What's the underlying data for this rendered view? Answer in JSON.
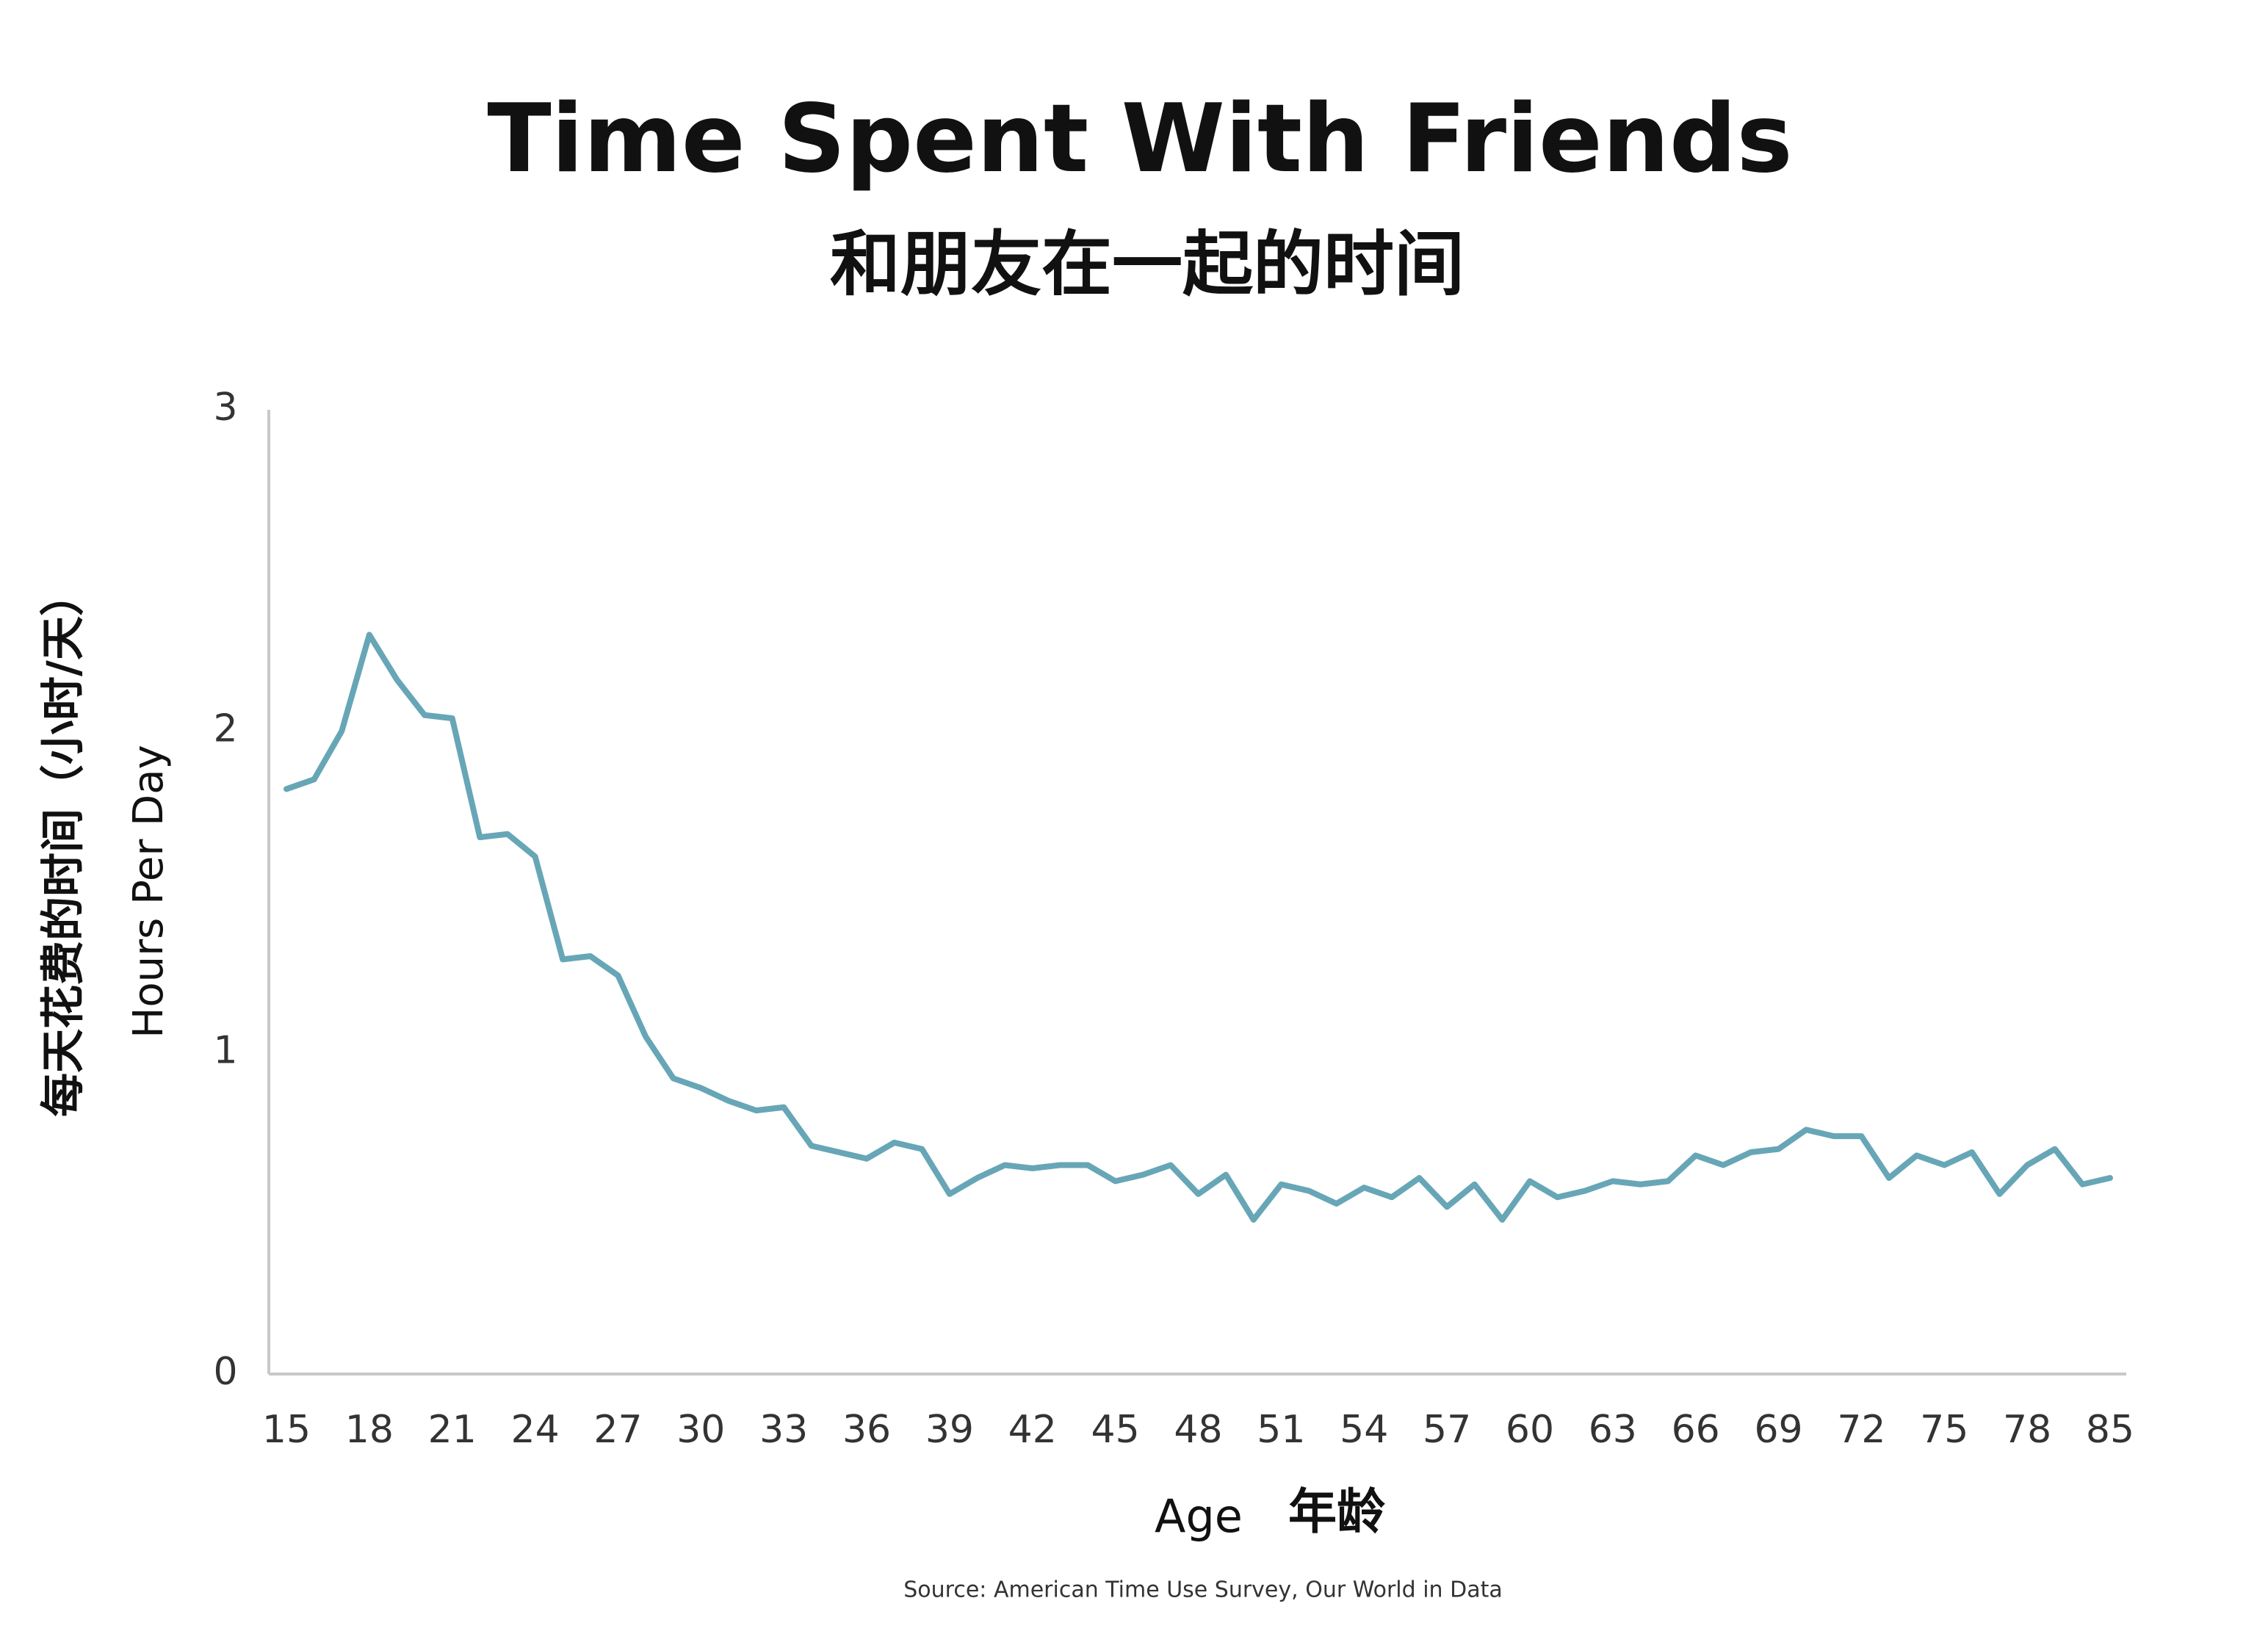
{
  "chart_data": {
    "type": "line",
    "title": "Time Spent With Friends",
    "subtitle": "和朋友在一起的时间",
    "x_label": "Age",
    "x_label_cn": "年龄",
    "y_label": "Hours Per Day",
    "y_label_cn": "每天花费的时间（小时/天）",
    "source": "Source: American Time Use Survey, Our World in Data",
    "categories": [
      "15",
      null,
      null,
      "18",
      null,
      null,
      "21",
      null,
      null,
      "24",
      null,
      null,
      "27",
      null,
      null,
      "30",
      null,
      null,
      "33",
      null,
      null,
      "36",
      null,
      null,
      "39",
      null,
      null,
      "42",
      null,
      null,
      "45",
      null,
      null,
      "48",
      null,
      null,
      "51",
      null,
      null,
      "54",
      null,
      null,
      "57",
      null,
      null,
      "60",
      null,
      null,
      "63",
      null,
      null,
      "66",
      null,
      null,
      "69",
      null,
      null,
      "72",
      null,
      null,
      "75",
      null,
      null,
      "78",
      null,
      null,
      "85"
    ],
    "series": [
      {
        "name": "Hours Per Day",
        "color": "#67a6b6",
        "values": [
          1.82,
          1.85,
          2.0,
          2.3,
          2.16,
          2.05,
          2.04,
          1.67,
          1.68,
          1.61,
          1.29,
          1.3,
          1.24,
          1.05,
          0.92,
          0.89,
          0.85,
          0.82,
          0.83,
          0.71,
          0.69,
          0.67,
          0.72,
          0.7,
          0.56,
          0.61,
          0.65,
          0.64,
          0.65,
          0.65,
          0.6,
          0.62,
          0.65,
          0.56,
          0.62,
          0.48,
          0.59,
          0.57,
          0.53,
          0.58,
          0.55,
          0.61,
          0.52,
          0.59,
          0.48,
          0.6,
          0.55,
          0.57,
          0.6,
          0.59,
          0.6,
          0.68,
          0.65,
          0.69,
          0.7,
          0.76,
          0.74,
          0.74,
          0.61,
          0.68,
          0.65,
          0.69,
          0.56,
          0.65,
          0.7,
          0.59,
          0.61
        ]
      }
    ],
    "ylim": [
      0,
      3
    ],
    "yticks": [
      0,
      1,
      2,
      3
    ],
    "grid": false
  }
}
